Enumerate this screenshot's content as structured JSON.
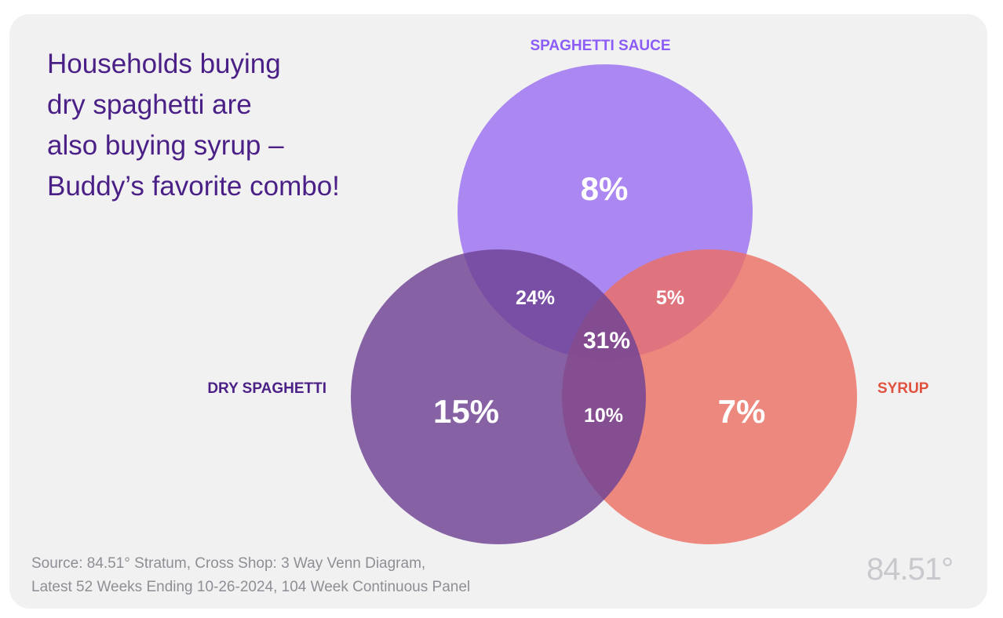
{
  "headline": {
    "lines": [
      "Households buying",
      "dry spaghetti are",
      "also buying syrup –",
      "Buddy’s favorite combo!"
    ]
  },
  "venn": {
    "sets": [
      {
        "id": "sauce",
        "label": "SPAGHETTI SAUCE",
        "color": "#9b6ff0",
        "label_color": "#8b5cf6"
      },
      {
        "id": "dry",
        "label": "DRY SPAGHETTI",
        "color": "#6e4294",
        "label_color": "#4a1f86"
      },
      {
        "id": "syrup",
        "label": "SYRUP",
        "color": "#ec7064",
        "label_color": "#e0523f"
      }
    ],
    "regions": {
      "sauce_only": "8%",
      "dry_only": "15%",
      "syrup_only": "7%",
      "sauce_dry": "24%",
      "sauce_syrup": "5%",
      "dry_syrup": "10%",
      "all_three": "31%"
    }
  },
  "source": {
    "line1": "Source: 84.51° Stratum, Cross Shop: 3 Way Venn Diagram,",
    "line2": "Latest 52 Weeks Ending 10-26-2024, 104 Week Continuous Panel"
  },
  "logo": {
    "text": "84.51°"
  }
}
